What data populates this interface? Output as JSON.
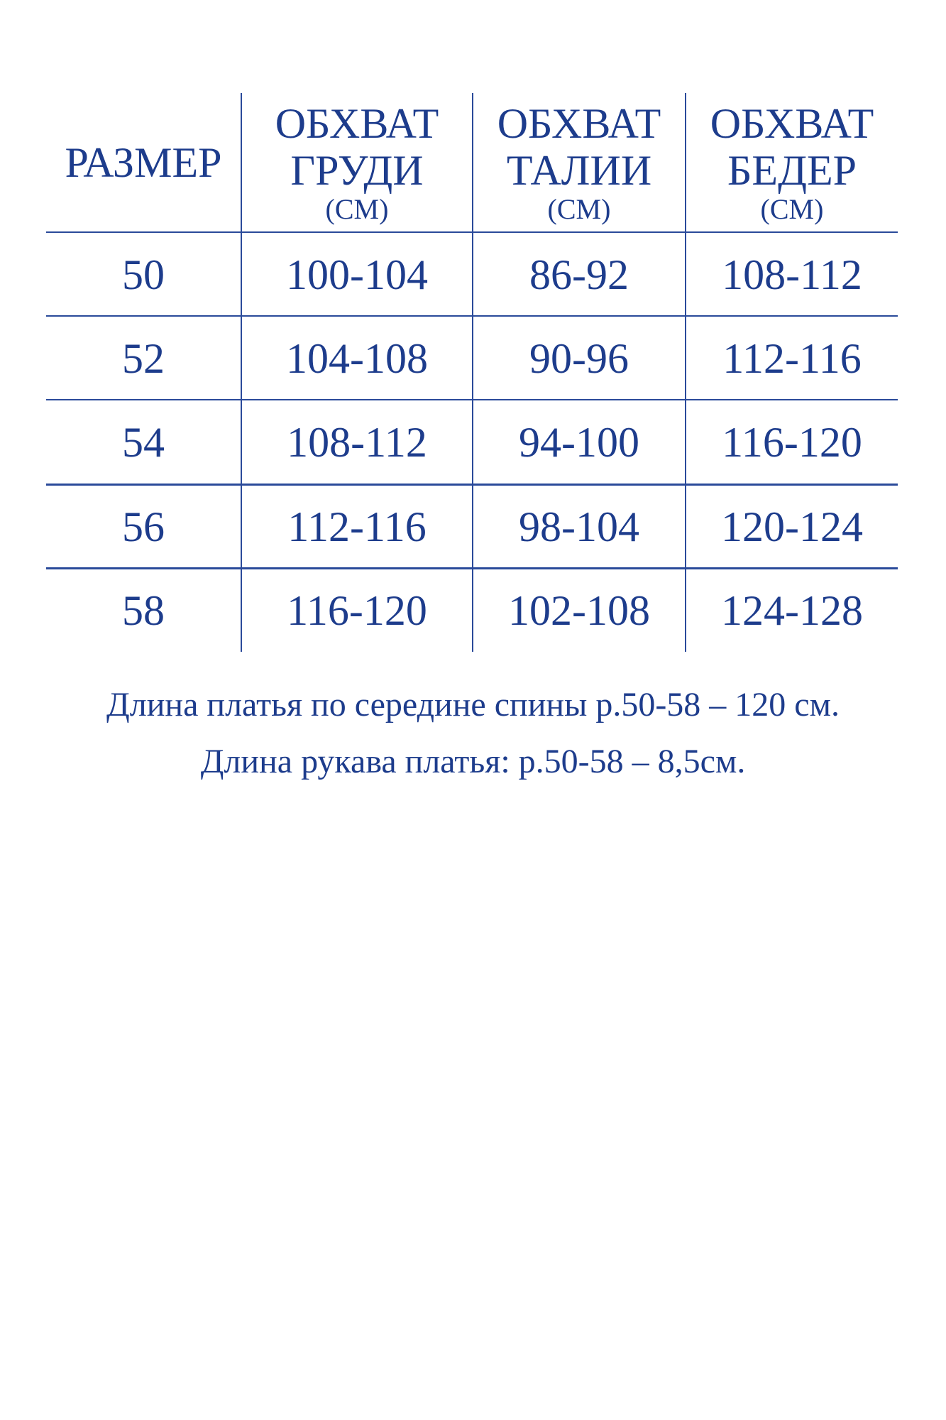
{
  "table": {
    "headers": [
      {
        "title": "РАЗМЕР",
        "lines": [
          "РАЗМЕР"
        ],
        "unit": ""
      },
      {
        "lines": [
          "ОБХВАТ",
          "ГРУДИ"
        ],
        "unit": "(СМ)"
      },
      {
        "lines": [
          "ОБХВАТ",
          "ТАЛИИ"
        ],
        "unit": "(СМ)"
      },
      {
        "lines": [
          "ОБХВАТ",
          "БЕДЕР"
        ],
        "unit": "(СМ)"
      }
    ],
    "rows": [
      [
        "50",
        "100-104",
        "86-92",
        "108-112"
      ],
      [
        "52",
        "104-108",
        "90-96",
        "112-116"
      ],
      [
        "54",
        "108-112",
        "94-100",
        "116-120"
      ],
      [
        "56",
        "112-116",
        "98-104",
        "120-124"
      ],
      [
        "58",
        "116-120",
        "102-108",
        "124-128"
      ]
    ]
  },
  "notes": [
    "Длина платья по середине спины р.50-58 – 120 см.",
    "Длина рукава платья: р.50-58 – 8,5см."
  ],
  "colors": {
    "text": "#1d3c8c",
    "lines": "#2a4a9a"
  }
}
